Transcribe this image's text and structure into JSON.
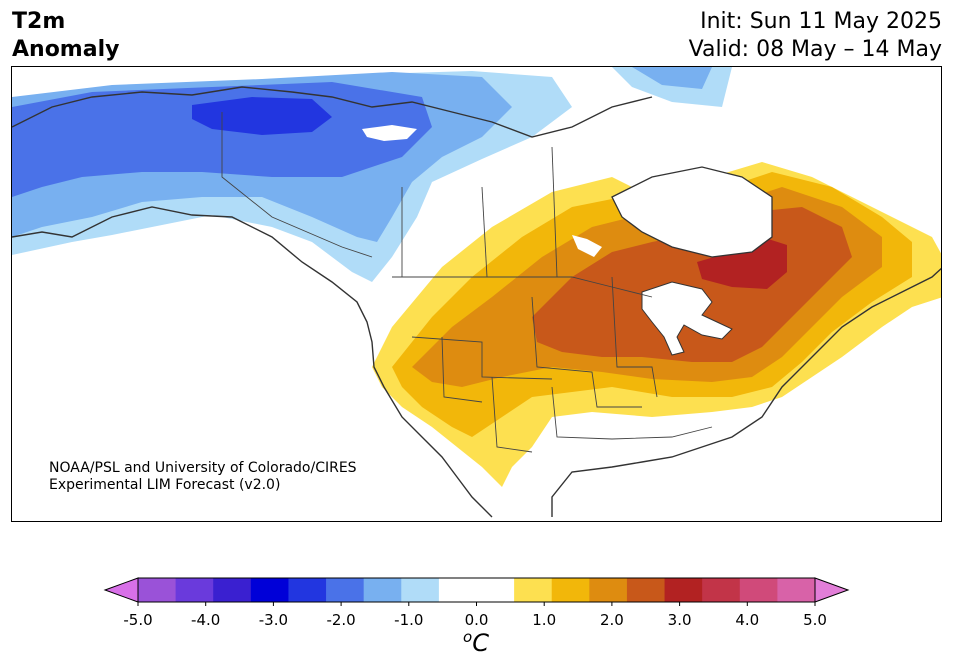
{
  "header": {
    "title_line1": "T2m",
    "title_line2": "Anomaly",
    "init": "Init: Sun 11 May 2025",
    "valid": "Valid: 08 May – 14 May"
  },
  "credit": {
    "line1": "NOAA/PSL and University of Colorado/CIRES",
    "line2": "Experimental LIM Forecast (v2.0)"
  },
  "colorbar": {
    "ticks": [
      "-5.0",
      "-4.0",
      "-3.0",
      "-2.0",
      "-1.0",
      "0.0",
      "1.0",
      "2.0",
      "3.0",
      "4.0",
      "5.0"
    ],
    "unit_sup": "o",
    "unit": "C",
    "colors": [
      "#d870e8",
      "#9a52d8",
      "#6a3adc",
      "#3a20d0",
      "#0000d8",
      "#2236e0",
      "#4a72e8",
      "#78b0f0",
      "#b0dcf8",
      "#ffffff",
      "#ffffff",
      "#fde050",
      "#f2b70a",
      "#de8c10",
      "#c8581a",
      "#b22222",
      "#c23448",
      "#d04a7a",
      "#d862a8",
      "#e27ed8"
    ]
  },
  "map_colors": {
    "neg1": "#b0dcf8",
    "neg2": "#78b0f0",
    "neg3": "#4a72e8",
    "neg4": "#2236e0",
    "pos1": "#fde050",
    "pos2": "#f2b70a",
    "pos3": "#de8c10",
    "pos4": "#c8581a",
    "pos5": "#b22222",
    "coast": "#333333"
  }
}
